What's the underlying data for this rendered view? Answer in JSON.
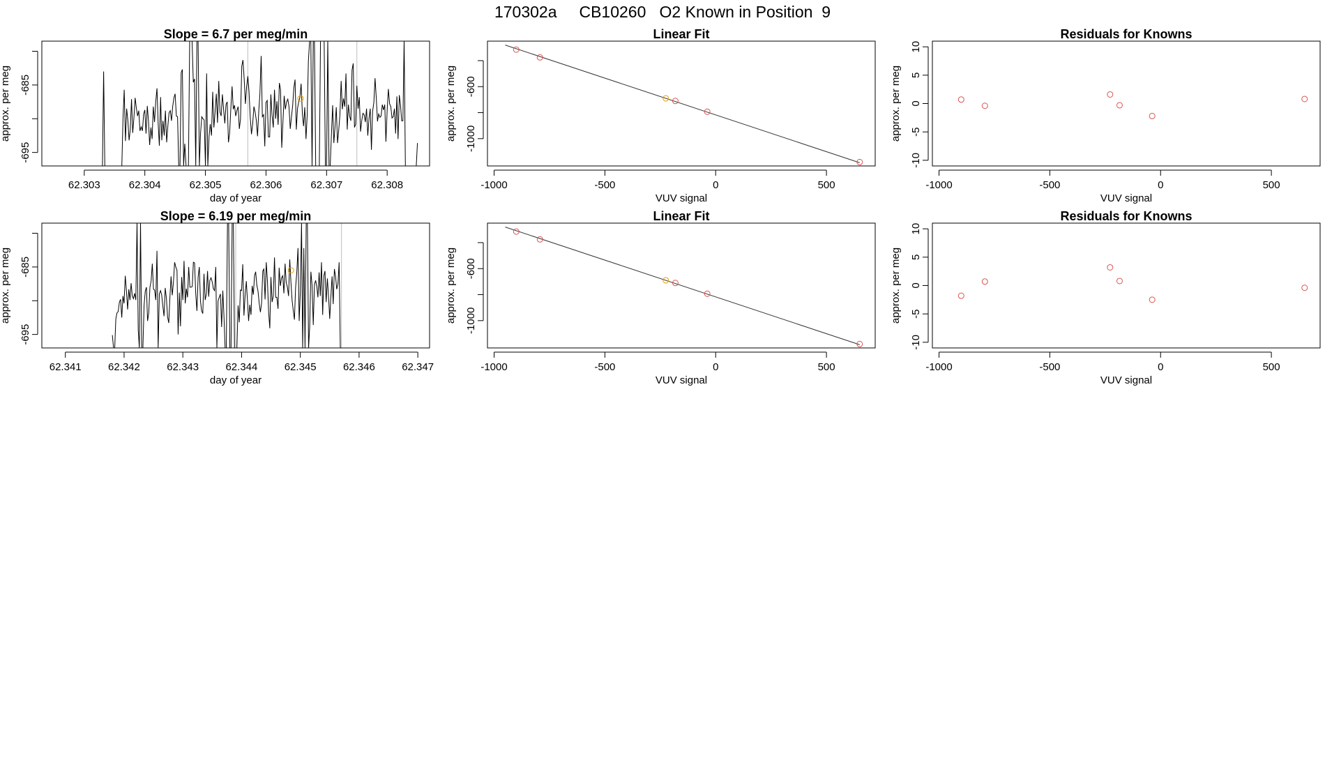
{
  "main_title": "170302a     CB10260   O2 Known in Position  9",
  "colors": {
    "line": "#000000",
    "known_point": "#d9534f",
    "selected_point": "#e69f00",
    "guide": "#bdbdbd"
  },
  "chart_data": [
    {
      "id": "drift-1",
      "type": "line",
      "title": "Slope =  6.7  per meg/min",
      "xlabel": "day of year",
      "ylabel": "approx. per meg",
      "xlim": [
        62.3023,
        62.3087
      ],
      "ylim": [
        -697,
        -678.5
      ],
      "xticks": [
        62.303,
        62.304,
        62.305,
        62.306,
        62.307,
        62.308
      ],
      "xtick_labels": [
        "62.303",
        "62.304",
        "62.305",
        "62.306",
        "62.307",
        "62.308"
      ],
      "yticks": [
        -695,
        -690,
        -685,
        -680
      ],
      "ytick_labels": [
        "-695",
        "",
        "-685",
        ""
      ],
      "guides": [
        62.3057,
        62.3075
      ],
      "marker": {
        "x": 62.30657,
        "y": -687
      },
      "series": {
        "x_start": 62.3033,
        "x_step": 2e-05,
        "y": [
          -697.0,
          -683.0,
          -697.0,
          -697.0,
          -697.0,
          -697.0,
          -697.0,
          -697.0,
          -697.0,
          -697.0,
          -697.0,
          -697.0,
          -697.0,
          -697.0,
          -697.0,
          -697.0,
          -697.0,
          -689.9,
          -685.7,
          -693.3,
          -688.5,
          -690.3,
          -693.2,
          -691.6,
          -687.1,
          -692.1,
          -689.9,
          -686.9,
          -688.4,
          -689.6,
          -688.8,
          -691.8,
          -691.2,
          -691.8,
          -689.3,
          -688.7,
          -692.2,
          -688.1,
          -690.3,
          -693.9,
          -691.3,
          -693.0,
          -688.2,
          -690.5,
          -687.5,
          -685.5,
          -690.7,
          -694.0,
          -686.8,
          -693.2,
          -690.3,
          -692.5,
          -688.8,
          -693.5,
          -691.1,
          -689.1,
          -688.8,
          -690.3,
          -688.2,
          -686.9,
          -686.3,
          -689.6,
          -689.7,
          -697.0,
          -697.0,
          -683.2,
          -682.7,
          -697.0,
          -693.7,
          -697.0,
          -697.0,
          -697.0,
          -678.4,
          -678.4,
          -678.4,
          -684.6,
          -684.1,
          -697.0,
          -678.4,
          -678.4,
          -697.0,
          -692.1,
          -689.7,
          -690.0,
          -690.2,
          -697.0,
          -683.3,
          -697.0,
          -692.6,
          -690.8,
          -692.5,
          -686.0,
          -691.3,
          -688.9,
          -686.3,
          -690.6,
          -684.4,
          -689.0,
          -689.6,
          -686.4,
          -688.6,
          -690.7,
          -687.9,
          -687.5,
          -693.5,
          -692.1,
          -688.5,
          -685.2,
          -688.6,
          -688.0,
          -689.6,
          -688.8,
          -688.2,
          -691.5,
          -690.0,
          -682.2,
          -681.3,
          -684.2,
          -687.8,
          -685.3,
          -683.7,
          -686.0,
          -689.7,
          -692.3,
          -690.8,
          -688.2,
          -689.0,
          -690.2,
          -692.6,
          -689.0,
          -686.3,
          -680.7,
          -689.7,
          -689.4,
          -694.1,
          -687.6,
          -687.3,
          -692.7,
          -692.7,
          -686.4,
          -689.5,
          -691.3,
          -685.7,
          -690.0,
          -687.4,
          -690.9,
          -684.7,
          -685.7,
          -694.3,
          -690.3,
          -686.6,
          -688.6,
          -687.5,
          -687.1,
          -688.2,
          -691.5,
          -689.8,
          -688.0,
          -685.4,
          -684.2,
          -691.6,
          -688.5,
          -687.5,
          -686.8,
          -684.8,
          -689.3,
          -691.1,
          -688.3,
          -693.0,
          -689.5,
          -681.5,
          -678.4,
          -678.4,
          -697.0,
          -678.4,
          -678.4,
          -697.0,
          -697.0,
          -697.0,
          -697.0,
          -678.4,
          -678.4,
          -678.4,
          -678.4,
          -697.0,
          -697.0,
          -678.4,
          -697.0,
          -697.0,
          -692.2,
          -688.0,
          -693.6,
          -691.1,
          -688.3,
          -693.6,
          -691.7,
          -689.5,
          -684.4,
          -688.6,
          -687.0,
          -688.2,
          -683.3,
          -691.6,
          -687.9,
          -689.6,
          -690.3,
          -682.8,
          -681.8,
          -691.3,
          -690.8,
          -685.1,
          -688.5,
          -686.8,
          -691.9,
          -690.3,
          -689.2,
          -689.4,
          -690.5,
          -688.5,
          -692.5,
          -690.0,
          -688.5,
          -694.6,
          -688.9,
          -687.6,
          -684.0,
          -686.8,
          -690.4,
          -689.3,
          -689.8,
          -689.6,
          -687.9,
          -688.7,
          -687.9,
          -693.4,
          -688.7,
          -685.6,
          -687.8,
          -688.2,
          -689.9,
          -689.7,
          -688.5,
          -692.2,
          -686.7,
          -693.0,
          -686.5,
          -688.0,
          -690.3,
          -690.3,
          -678.4,
          -697.0,
          -697.0,
          -697.0,
          -697.0,
          -697.0,
          -697.0,
          -697.0,
          -697.0,
          -697.0,
          -697.0,
          -693.6
        ]
      }
    },
    {
      "id": "fit-1",
      "type": "scatter",
      "title": "Linear Fit",
      "xlabel": "VUV signal",
      "ylabel": "approx. per meg",
      "xlim": [
        -1030,
        720
      ],
      "ylim": [
        -1210,
        -250
      ],
      "xticks": [
        -1000,
        -500,
        0,
        500
      ],
      "xtick_labels": [
        "-1000",
        "-500",
        "0",
        "500"
      ],
      "yticks": [
        -400,
        -600,
        -800,
        -1000
      ],
      "ytick_labels": [
        "",
        "-600",
        "",
        "-1000"
      ],
      "fit_line": {
        "x": [
          -950,
          650
        ],
        "y": [
          -280,
          -1185
        ]
      },
      "points": [
        {
          "x": -900,
          "y": -315,
          "group": "known"
        },
        {
          "x": -793,
          "y": -375,
          "group": "known"
        },
        {
          "x": -225,
          "y": -690,
          "group": "selected"
        },
        {
          "x": -182,
          "y": -710,
          "group": "known"
        },
        {
          "x": -38,
          "y": -793,
          "group": "known"
        },
        {
          "x": 650,
          "y": -1180,
          "group": "known"
        }
      ]
    },
    {
      "id": "resid-1",
      "type": "scatter",
      "title": "Residuals for Knowns",
      "xlabel": "VUV signal",
      "ylabel": "approx. per meg",
      "xlim": [
        -1030,
        720
      ],
      "ylim": [
        -11,
        11
      ],
      "xticks": [
        -1000,
        -500,
        0,
        500
      ],
      "xtick_labels": [
        "-1000",
        "-500",
        "0",
        "500"
      ],
      "yticks": [
        -10,
        -5,
        0,
        5,
        10
      ],
      "ytick_labels": [
        "-10",
        "-5",
        "0",
        "5",
        "10"
      ],
      "points": [
        {
          "x": -900,
          "y": 0.7,
          "group": "known"
        },
        {
          "x": -793,
          "y": -0.4,
          "group": "known"
        },
        {
          "x": -228,
          "y": 1.6,
          "group": "known"
        },
        {
          "x": -185,
          "y": -0.3,
          "group": "known"
        },
        {
          "x": -38,
          "y": -2.2,
          "group": "known"
        },
        {
          "x": 650,
          "y": 0.8,
          "group": "known"
        }
      ]
    },
    {
      "id": "drift-2",
      "type": "line",
      "title": "Slope =  6.19  per meg/min",
      "xlabel": "day of year",
      "ylabel": "approx. per meg",
      "xlim": [
        62.3406,
        62.3472
      ],
      "ylim": [
        -697,
        -678.5
      ],
      "xticks": [
        62.341,
        62.342,
        62.343,
        62.344,
        62.345,
        62.346,
        62.347
      ],
      "xtick_labels": [
        "62.341",
        "62.342",
        "62.343",
        "62.344",
        "62.345",
        "62.346",
        "62.347"
      ],
      "yticks": [
        -695,
        -690,
        -685,
        -680
      ],
      "ytick_labels": [
        "-695",
        "",
        "-685",
        ""
      ],
      "guides": [
        62.3439,
        62.3457
      ],
      "marker": {
        "x": 62.34484,
        "y": -685.5
      },
      "series": {
        "x_start": 62.3418,
        "x_step": 2e-05,
        "y": [
          -695.1,
          -697.0,
          -697.0,
          -692.7,
          -691.8,
          -691.6,
          -690.2,
          -689.8,
          -692.5,
          -689.3,
          -690.4,
          -686.3,
          -688.5,
          -691.3,
          -688.3,
          -689.9,
          -687.4,
          -689.3,
          -689.7,
          -688.9,
          -689.9,
          -678.4,
          -694.3,
          -697.0,
          -678.4,
          -697.0,
          -697.0,
          -690.7,
          -688.6,
          -688.0,
          -693.0,
          -691.8,
          -688.0,
          -687.1,
          -684.5,
          -688.3,
          -688.4,
          -689.9,
          -682.6,
          -697.0,
          -689.0,
          -688.5,
          -689.2,
          -690.8,
          -692.3,
          -688.1,
          -689.6,
          -692.4,
          -693.3,
          -689.6,
          -686.4,
          -689.2,
          -687.3,
          -684.3,
          -685.0,
          -685.5,
          -695.0,
          -688.8,
          -693.8,
          -686.5,
          -689.9,
          -684.1,
          -690.4,
          -688.2,
          -689.5,
          -685.0,
          -688.0,
          -688.0,
          -687.9,
          -684.3,
          -684.4,
          -689.0,
          -691.5,
          -686.5,
          -685.0,
          -690.1,
          -691.5,
          -691.9,
          -686.0,
          -689.9,
          -689.0,
          -685.6,
          -689.4,
          -687.0,
          -686.6,
          -687.2,
          -688.2,
          -688.5,
          -685.0,
          -697.0,
          -690.0,
          -689.5,
          -689.0,
          -693.9,
          -688.5,
          -692.4,
          -697.0,
          -697.0,
          -678.4,
          -678.4,
          -697.0,
          -697.0,
          -678.4,
          -678.4,
          -697.0,
          -697.0,
          -697.0,
          -690.7,
          -693.2,
          -688.4,
          -688.5,
          -684.6,
          -692.2,
          -689.2,
          -687.1,
          -689.9,
          -693.0,
          -690.6,
          -692.1,
          -687.8,
          -689.1,
          -686.3,
          -685.7,
          -687.7,
          -688.6,
          -690.4,
          -691.7,
          -690.4,
          -685.6,
          -685.3,
          -689.8,
          -684.3,
          -687.1,
          -691.7,
          -694.1,
          -686.5,
          -690.2,
          -689.3,
          -683.6,
          -689.5,
          -689.5,
          -691.2,
          -685.1,
          -687.8,
          -686.6,
          -686.3,
          -688.9,
          -684.5,
          -687.3,
          -688.0,
          -689.3,
          -683.9,
          -687.3,
          -690.0,
          -691.5,
          -692.8,
          -688.0,
          -685.8,
          -682.2,
          -693.0,
          -688.7,
          -678.4,
          -697.0,
          -682.2,
          -697.0,
          -678.4,
          -678.4,
          -697.0,
          -693.8,
          -685.7,
          -687.7,
          -693.6,
          -687.6,
          -687.0,
          -687.9,
          -689.5,
          -685.8,
          -689.3,
          -684.3,
          -692.1,
          -686.3,
          -685.6,
          -690.2,
          -686.7,
          -689.3,
          -692.7,
          -689.3,
          -686.4,
          -690.5,
          -685.3,
          -686.4,
          -688.3,
          -687.5,
          -684.3,
          -697.0
        ]
      }
    },
    {
      "id": "fit-2",
      "type": "scatter",
      "title": "Linear Fit",
      "xlabel": "VUV signal",
      "ylabel": "approx. per meg",
      "xlim": [
        -1030,
        720
      ],
      "ylim": [
        -1210,
        -250
      ],
      "xticks": [
        -1000,
        -500,
        0,
        500
      ],
      "xtick_labels": [
        "-1000",
        "-500",
        "0",
        "500"
      ],
      "yticks": [
        -400,
        -600,
        -800,
        -1000
      ],
      "ytick_labels": [
        "",
        "-600",
        "",
        "-1000"
      ],
      "fit_line": {
        "x": [
          -950,
          650
        ],
        "y": [
          -280,
          -1185
        ]
      },
      "points": [
        {
          "x": -900,
          "y": -315,
          "group": "known"
        },
        {
          "x": -793,
          "y": -375,
          "group": "known"
        },
        {
          "x": -225,
          "y": -690,
          "group": "selected"
        },
        {
          "x": -182,
          "y": -710,
          "group": "known"
        },
        {
          "x": -38,
          "y": -793,
          "group": "known"
        },
        {
          "x": 650,
          "y": -1180,
          "group": "known"
        }
      ]
    },
    {
      "id": "resid-2",
      "type": "scatter",
      "title": "Residuals for Knowns",
      "xlabel": "VUV signal",
      "ylabel": "approx. per meg",
      "xlim": [
        -1030,
        720
      ],
      "ylim": [
        -11,
        11
      ],
      "xticks": [
        -1000,
        -500,
        0,
        500
      ],
      "xtick_labels": [
        "-1000",
        "-500",
        "0",
        "500"
      ],
      "yticks": [
        -10,
        -5,
        0,
        5,
        10
      ],
      "ytick_labels": [
        "-10",
        "-5",
        "0",
        "5",
        "10"
      ],
      "points": [
        {
          "x": -900,
          "y": -1.8,
          "group": "known"
        },
        {
          "x": -793,
          "y": 0.7,
          "group": "known"
        },
        {
          "x": -228,
          "y": 3.2,
          "group": "known"
        },
        {
          "x": -185,
          "y": 0.8,
          "group": "known"
        },
        {
          "x": -38,
          "y": -2.5,
          "group": "known"
        },
        {
          "x": 650,
          "y": -0.4,
          "group": "known"
        }
      ]
    }
  ]
}
